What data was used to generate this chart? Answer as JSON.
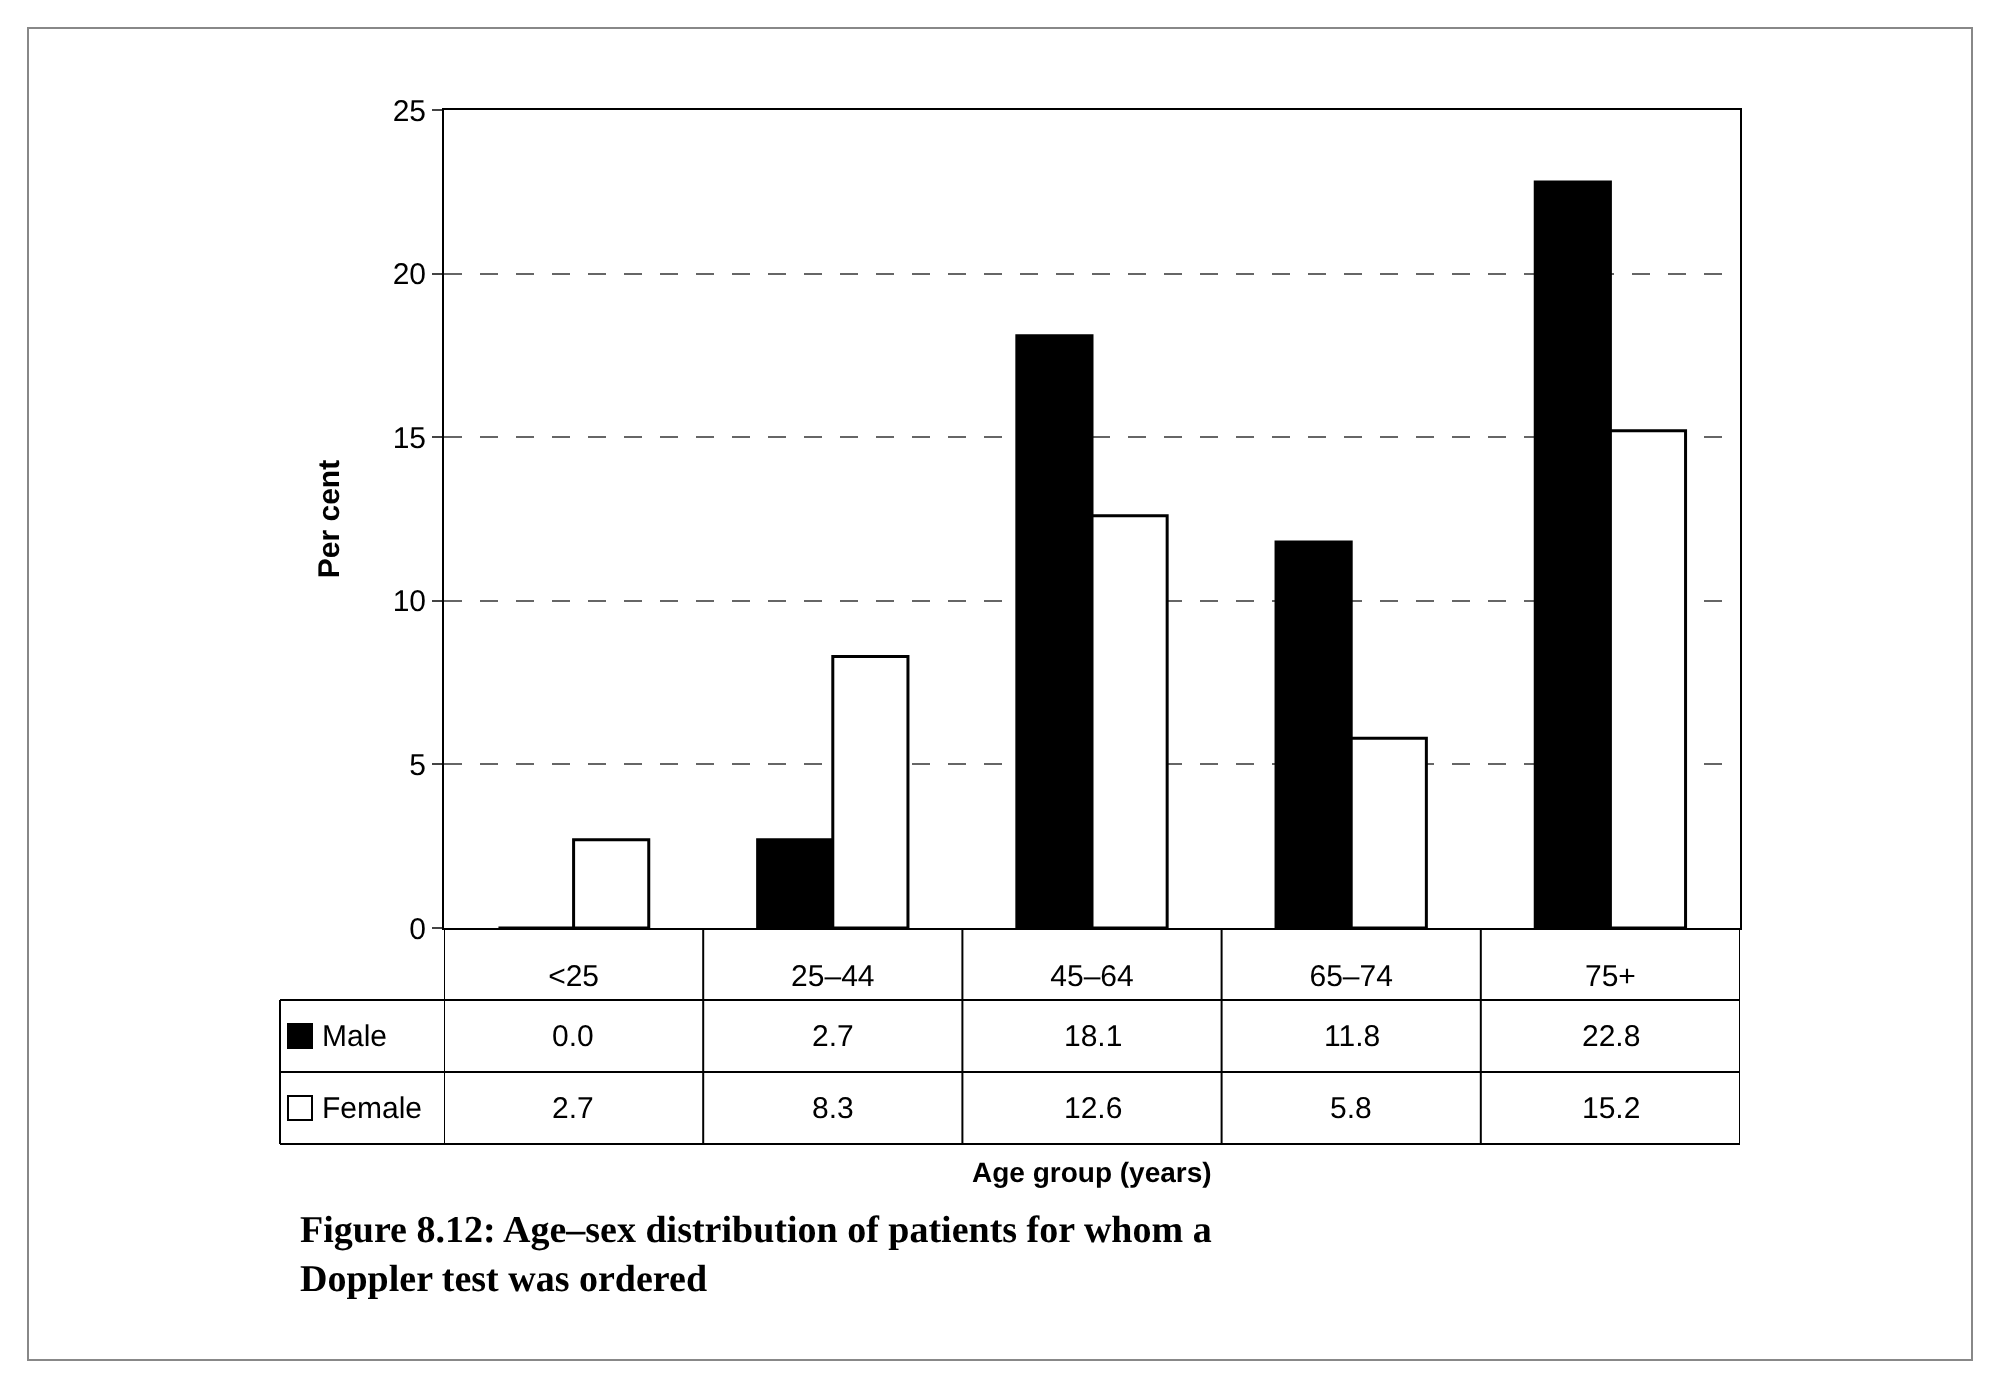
{
  "chart_data": {
    "type": "bar",
    "categories": [
      "<25",
      "25–44",
      "45–64",
      "65–74",
      "75+"
    ],
    "series": [
      {
        "name": "Male",
        "color": "#000000",
        "values": [
          0.0,
          2.7,
          18.1,
          11.8,
          22.8
        ],
        "value_labels": [
          "0.0",
          "2.7",
          "18.1",
          "11.8",
          "22.8"
        ]
      },
      {
        "name": "Female",
        "color": "#ffffff",
        "values": [
          2.7,
          8.3,
          12.6,
          5.8,
          15.2
        ],
        "value_labels": [
          "2.7",
          "8.3",
          "12.6",
          "5.8",
          "15.2"
        ]
      }
    ],
    "ylabel": "Per cent",
    "legend": "bottom left",
    "ylim": [
      0,
      25
    ],
    "yticks": [
      0,
      5,
      10,
      15,
      20,
      25
    ],
    "grid": "y",
    "annotations": [
      "Age group (years)",
      "Figure 8.12: Age–sex distribution of patients for whom a Doppler test was ordered"
    ]
  }
}
